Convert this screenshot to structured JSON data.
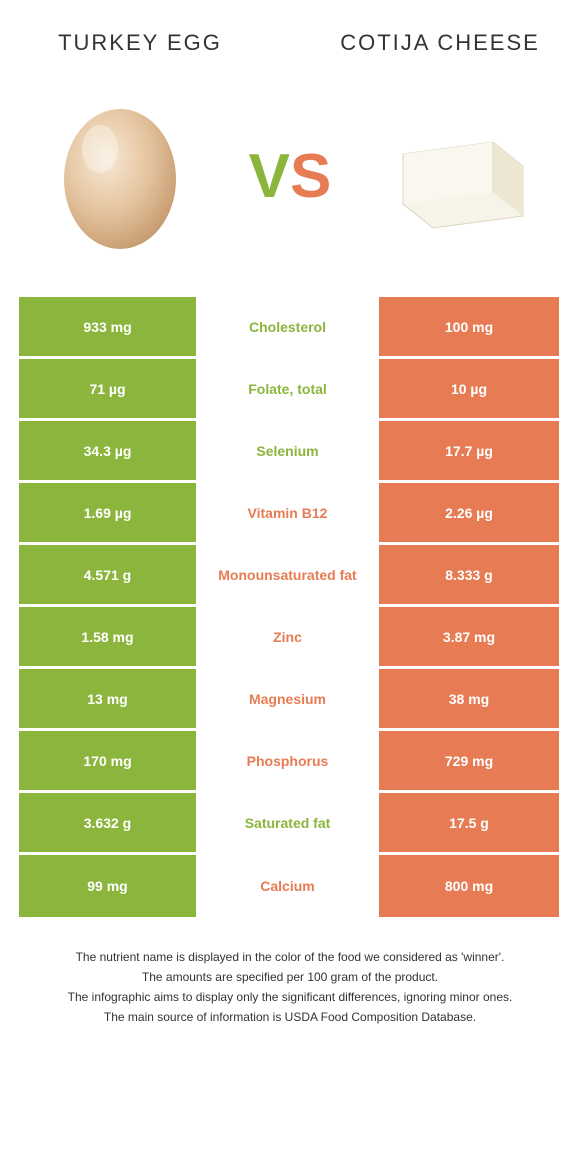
{
  "titles": {
    "left": "TURKEY EGG",
    "right": "COTIJA CHEESE"
  },
  "vs": {
    "v": "V",
    "s": "S"
  },
  "colors": {
    "left": "#8bb53d",
    "right": "#e77c54",
    "left_text": "#8bb53d",
    "right_text": "#e77c54"
  },
  "rows": [
    {
      "label": "Cholesterol",
      "left": "933 mg",
      "right": "100 mg",
      "winner": "left"
    },
    {
      "label": "Folate, total",
      "left": "71 µg",
      "right": "10 µg",
      "winner": "left"
    },
    {
      "label": "Selenium",
      "left": "34.3 µg",
      "right": "17.7 µg",
      "winner": "left"
    },
    {
      "label": "Vitamin B12",
      "left": "1.69 µg",
      "right": "2.26 µg",
      "winner": "right"
    },
    {
      "label": "Monounsaturated fat",
      "left": "4.571 g",
      "right": "8.333 g",
      "winner": "right"
    },
    {
      "label": "Zinc",
      "left": "1.58 mg",
      "right": "3.87 mg",
      "winner": "right"
    },
    {
      "label": "Magnesium",
      "left": "13 mg",
      "right": "38 mg",
      "winner": "right"
    },
    {
      "label": "Phosphorus",
      "left": "170 mg",
      "right": "729 mg",
      "winner": "right"
    },
    {
      "label": "Saturated fat",
      "left": "3.632 g",
      "right": "17.5 g",
      "winner": "left"
    },
    {
      "label": "Calcium",
      "left": "99 mg",
      "right": "800 mg",
      "winner": "right"
    }
  ],
  "notes": [
    "The nutrient name is displayed in the color of the food we considered as 'winner'.",
    "The amounts are specified per 100 gram of the product.",
    "The infographic aims to display only the significant differences, ignoring minor ones.",
    "The main source of information is USDA Food Composition Database."
  ]
}
